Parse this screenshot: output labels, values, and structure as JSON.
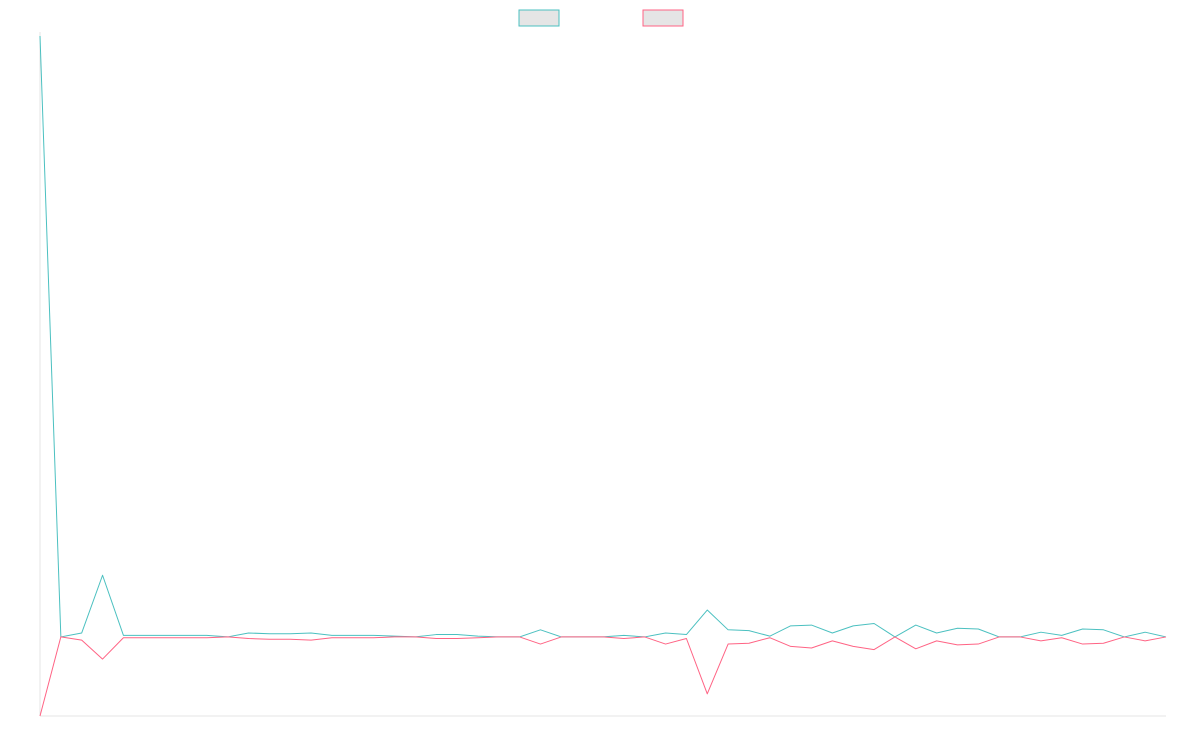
{
  "chart_data": {
    "type": "line",
    "title": "",
    "xlabel": "",
    "ylabel": "",
    "grid": false,
    "legend_position": "top",
    "x": [
      1,
      2,
      3,
      4,
      5,
      6,
      7,
      8,
      9,
      10,
      11,
      12,
      13,
      14,
      15,
      16,
      17,
      18,
      19,
      20,
      21,
      22,
      23,
      24,
      25,
      26,
      27,
      28,
      29,
      30,
      31,
      32,
      33,
      34,
      35,
      36,
      37,
      38,
      39,
      40,
      41,
      42,
      43,
      44,
      45,
      46,
      47,
      48,
      49,
      50,
      51,
      52,
      53,
      54,
      55
    ],
    "ylim": [
      -1,
      7.6
    ],
    "series": [
      {
        "name": "",
        "color": "#4bc0c0",
        "values": [
          7.6,
          0,
          0.05,
          0.78,
          0.02,
          0.02,
          0.02,
          0.02,
          0.02,
          0,
          0.05,
          0.04,
          0.04,
          0.05,
          0.02,
          0.02,
          0.02,
          0.01,
          0,
          0.03,
          0.03,
          0.01,
          0,
          0,
          0.09,
          0,
          0,
          0,
          0.02,
          0,
          0.05,
          0.03,
          0.34,
          0.09,
          0.08,
          0.01,
          0.14,
          0.15,
          0.05,
          0.14,
          0.17,
          0,
          0.15,
          0.05,
          0.11,
          0.1,
          0,
          0,
          0.06,
          0.02,
          0.1,
          0.09,
          0,
          0.06,
          0
        ]
      },
      {
        "name": "",
        "color": "#ff6384",
        "values": [
          -1,
          0,
          -0.04,
          -0.28,
          -0.01,
          -0.01,
          -0.01,
          -0.01,
          -0.01,
          0,
          -0.02,
          -0.03,
          -0.03,
          -0.04,
          -0.01,
          -0.01,
          -0.01,
          0,
          0,
          -0.02,
          -0.02,
          -0.01,
          0,
          0,
          -0.09,
          0,
          0,
          0,
          -0.02,
          0,
          -0.09,
          -0.02,
          -0.72,
          -0.09,
          -0.08,
          -0.01,
          -0.12,
          -0.14,
          -0.05,
          -0.12,
          -0.16,
          0,
          -0.15,
          -0.05,
          -0.1,
          -0.09,
          0,
          0,
          -0.05,
          -0.01,
          -0.09,
          -0.08,
          0,
          -0.05,
          0
        ]
      }
    ]
  }
}
